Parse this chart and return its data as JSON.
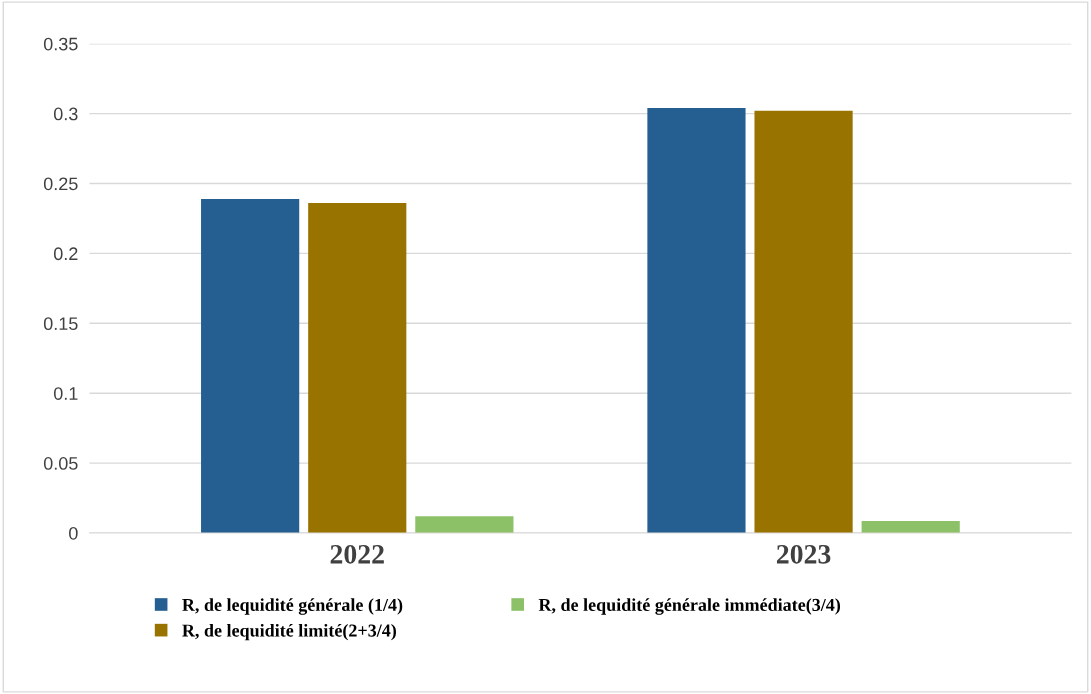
{
  "chart_data": {
    "type": "bar",
    "categories": [
      "2022",
      "2023"
    ],
    "series": [
      {
        "name": "R, de lequidité générale (1/4)",
        "color": "#255e91",
        "values": [
          0.239,
          0.304
        ]
      },
      {
        "name": "R, de lequidité limité(2+3/4)",
        "color": "#997300",
        "values": [
          0.236,
          0.302
        ]
      },
      {
        "name": "R, de lequidité générale immédiate(3/4)",
        "color": "#8cc168",
        "values": [
          0.012,
          0.0085
        ]
      }
    ],
    "ylim": [
      0,
      0.35
    ],
    "yticks": [
      {
        "value": 0,
        "label": "0"
      },
      0.05,
      0.1,
      0.15,
      0.2,
      0.25,
      0.3,
      0.35
    ],
    "grid": "y",
    "legend": "bottom"
  }
}
